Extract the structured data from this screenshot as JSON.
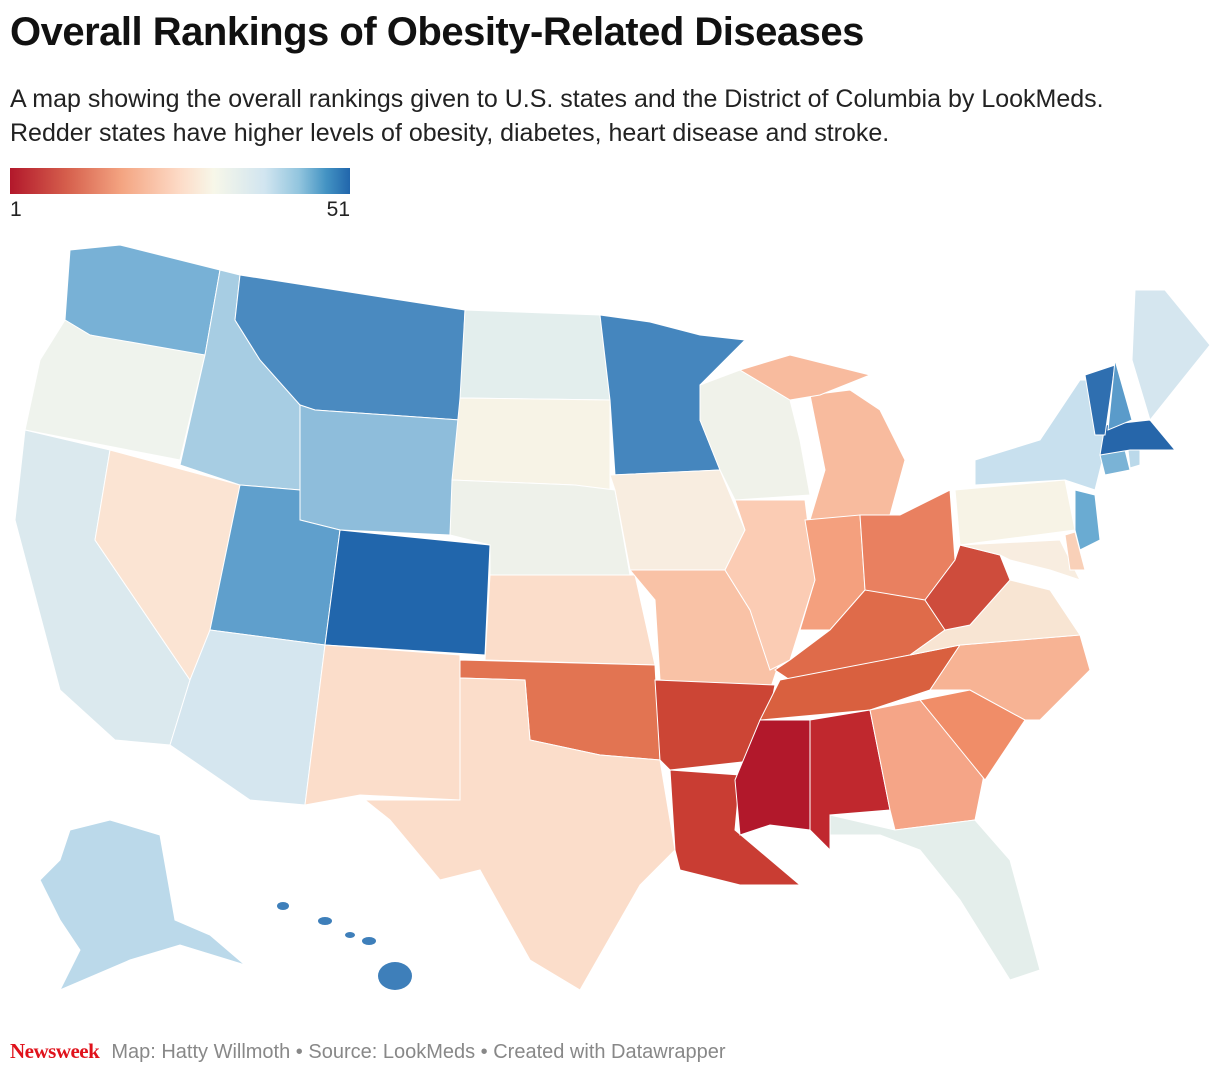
{
  "title": "Overall Rankings of Obesity-Related Diseases",
  "subtitle": "A map showing the overall rankings given to U.S. states and the District of Columbia by LookMeds. Redder states have higher levels of obesity, diabetes, heart disease and stroke.",
  "legend": {
    "min_label": "1",
    "max_label": "51",
    "low_color": "#b2182b",
    "high_color": "#2166ac"
  },
  "footer": {
    "logo": "Newsweek",
    "credit": "Map: Hatty Willmoth • Source: LookMeds • Created with Datawrapper"
  },
  "state_fills": {
    "MS": "#b2182b",
    "AL": "#c0282e",
    "AR": "#cc4535",
    "LA": "#c93d33",
    "WV": "#ce4c3c",
    "TN": "#d9603f",
    "KY": "#df6b4a",
    "OK": "#e27452",
    "OH": "#e98060",
    "SC": "#f08d68",
    "IN": "#f4a07e",
    "GA": "#f5a587",
    "NC": "#f7b394",
    "MI": "#f8bb9e",
    "IL": "#fbccb4",
    "MO": "#f9c2a6",
    "TX": "#fbddca",
    "NM": "#fbddca",
    "KS": "#fbddca",
    "NV": "#fbe4d3",
    "VA": "#f8e5d3",
    "IA": "#f8ede0",
    "MD": "#f8ede0",
    "DE": "#f9d0b8",
    "SD": "#f7f3e6",
    "PA": "#f7f3e6",
    "NE": "#eef1ea",
    "WI": "#f0f2ea",
    "OR": "#eff3ed",
    "ND": "#e3eeed",
    "FL": "#e4eeeb",
    "CA": "#dbe9ee",
    "AZ": "#d5e6ef",
    "ME": "#d5e6ef",
    "NY": "#c8e0ee",
    "AK": "#bbd9ea",
    "RI": "#bbd9ea",
    "ID": "#a7cde3",
    "WY": "#8ebddb",
    "WA": "#78b1d6",
    "CT": "#7ab3d6",
    "NJ": "#6aabd2",
    "UT": "#5f9fcc",
    "NH": "#5a9bca",
    "MT": "#4a8ac0",
    "MN": "#4586be",
    "HI": "#3e7fba",
    "VT": "#2f6fb0",
    "MA": "#2666aa",
    "CO": "#2166ac"
  }
}
